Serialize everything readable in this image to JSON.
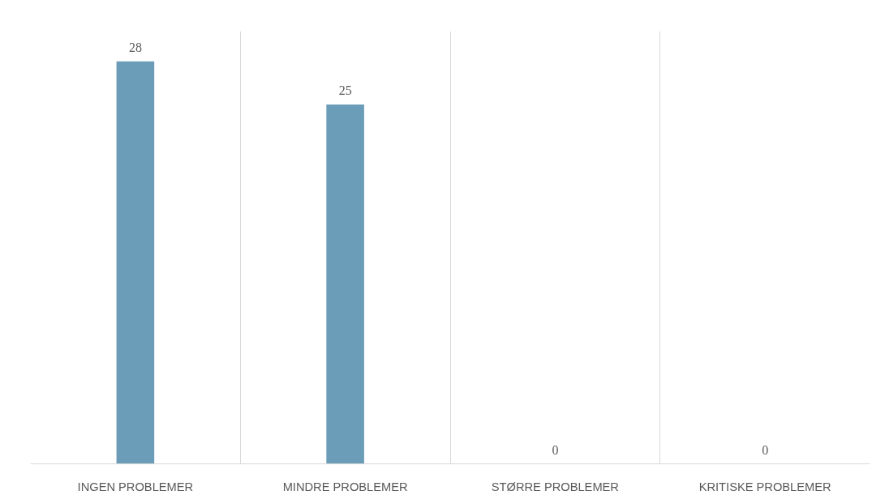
{
  "chart_data": {
    "type": "bar",
    "categories": [
      "INGEN PROBLEMER",
      "MINDRE PROBLEMER",
      "STØRRE PROBLEMER",
      "KRITISKE PROBLEMER"
    ],
    "values": [
      28,
      25,
      0,
      0
    ],
    "color": "#6b9db8",
    "data_labels": true,
    "grid": "x",
    "tick_labels": "x"
  }
}
